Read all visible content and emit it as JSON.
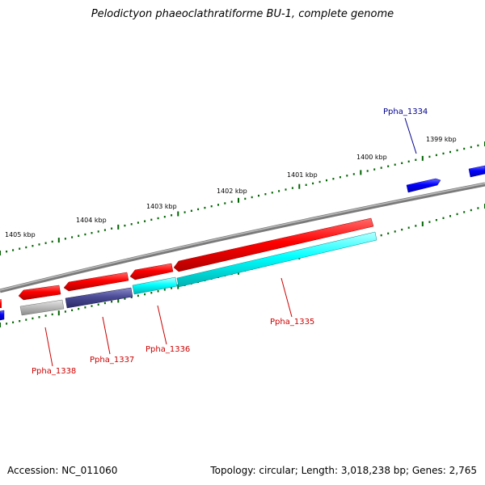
{
  "title": "Pelodictyon phaeoclathratiforme BU-1, complete genome",
  "footer": {
    "accession": "Accession: NC_011060",
    "summary": "Topology: circular; Length: 3,018,238 bp; Genes: 2,765"
  },
  "scale_labels": [
    "1399 kbp",
    "1400 kbp",
    "1401 kbp",
    "1402 kbp",
    "1403 kbp",
    "1404 kbp",
    "1405 kbp"
  ],
  "genes": [
    {
      "name": "Ppha_1334",
      "color": "#00008b"
    },
    {
      "name": "Ppha_1335",
      "color": "#cc0000"
    },
    {
      "name": "Ppha_1336",
      "color": "#cc0000"
    },
    {
      "name": "Ppha_1337",
      "color": "#cc0000"
    },
    {
      "name": "Ppha_1338",
      "color": "#cc0000"
    }
  ],
  "colors": {
    "forward_cds": "#0000ee",
    "reverse_cds": "#ee0000",
    "cyan_feature": "#00e5e5",
    "navy_feature": "#3c3c88",
    "gray_feature": "#a0a0a0",
    "backbone": "#888888",
    "tick": "#006400"
  }
}
